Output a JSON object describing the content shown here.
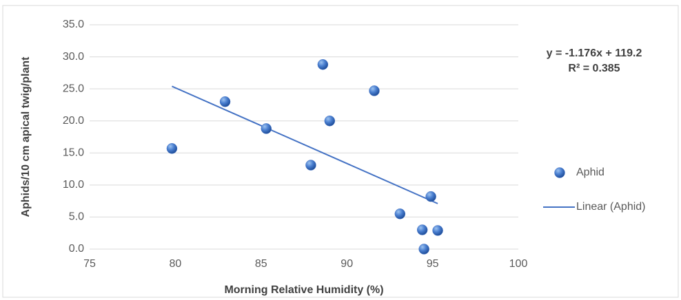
{
  "chart_data": {
    "type": "scatter",
    "x_label": "Morning Relative Humidity (%)",
    "y_label": "Aphids/10 cm apical twig/plant",
    "annotations": [
      "y = -1.176x + 119.2",
      "R² = 0.385"
    ],
    "xlim": [
      75,
      100
    ],
    "xticks": [
      75,
      80,
      85,
      90,
      95,
      100
    ],
    "ylim": [
      0,
      35
    ],
    "yticks": [
      {
        "value": 0,
        "label": "0.0"
      },
      {
        "value": 5,
        "label": "5.0"
      },
      {
        "value": 10,
        "label": "10.0"
      },
      {
        "value": 15,
        "label": "15.0"
      },
      {
        "value": 20,
        "label": "20.0"
      },
      {
        "value": 25,
        "label": "25.0"
      },
      {
        "value": 30,
        "label": "30.0"
      },
      {
        "value": 35,
        "label": "35.0"
      }
    ],
    "grid": true,
    "legend": "right",
    "series": [
      {
        "name": "Aphid",
        "type": "scatter",
        "color": "#4472c4",
        "x": [
          79.8,
          82.9,
          85.3,
          88.6,
          87.9,
          89.0,
          91.6,
          93.1,
          94.4,
          94.5,
          94.9,
          95.3
        ],
        "values": [
          15.7,
          23.0,
          18.8,
          28.8,
          13.1,
          20.0,
          24.7,
          5.5,
          3.0,
          0.0,
          8.2,
          2.9
        ]
      },
      {
        "name": "Linear (Aphid)",
        "type": "line",
        "color": "#4472c4",
        "x": [
          79.8,
          95.3
        ],
        "values": [
          25.4,
          7.1
        ]
      }
    ]
  }
}
